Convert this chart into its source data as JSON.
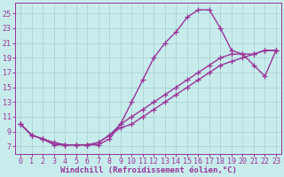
{
  "background_color": "#c8ecec",
  "grid_color": "#aad4d4",
  "line_color": "#993399",
  "marker": "+",
  "marker_size": 4,
  "linewidth": 1.0,
  "xlabel": "Windchill (Refroidissement éolien,°C)",
  "xlabel_fontsize": 6.5,
  "xlim": [
    -0.5,
    23.5
  ],
  "ylim": [
    6.0,
    26.5
  ],
  "xticks": [
    0,
    1,
    2,
    3,
    4,
    5,
    6,
    7,
    8,
    9,
    10,
    11,
    12,
    13,
    14,
    15,
    16,
    17,
    18,
    19,
    20,
    21,
    22,
    23
  ],
  "yticks": [
    7,
    9,
    11,
    13,
    15,
    17,
    19,
    21,
    23,
    25
  ],
  "tick_fontsize": 6,
  "curves": [
    {
      "x": [
        0,
        1,
        2,
        3,
        4,
        5,
        6,
        7,
        8,
        9,
        10,
        11,
        12,
        13,
        14,
        15,
        16,
        17,
        18,
        19,
        20,
        21,
        22,
        23
      ],
      "y": [
        10,
        8.5,
        8.0,
        7.2,
        7.2,
        7.2,
        7.2,
        7.2,
        8.0,
        10.0,
        13.0,
        16.0,
        19.0,
        21.0,
        22.5,
        24.5,
        25.5,
        25.5,
        23.0,
        20.0,
        19.5,
        19.5,
        20.0,
        20.0
      ]
    },
    {
      "x": [
        0,
        1,
        2,
        3,
        4,
        5,
        6,
        7,
        8,
        9,
        10,
        11,
        12,
        13,
        14,
        15,
        16,
        17,
        18,
        19,
        20,
        21,
        22,
        23
      ],
      "y": [
        10,
        8.5,
        8.0,
        7.5,
        7.2,
        7.2,
        7.2,
        7.5,
        8.5,
        10.0,
        11.0,
        12.0,
        13.0,
        14.0,
        15.0,
        16.0,
        17.0,
        18.0,
        19.0,
        19.5,
        19.5,
        18.0,
        16.5,
        20.0
      ]
    },
    {
      "x": [
        0,
        1,
        2,
        3,
        4,
        5,
        6,
        7,
        8,
        9,
        10,
        11,
        12,
        13,
        14,
        15,
        16,
        17,
        18,
        19,
        20,
        21,
        22,
        23
      ],
      "y": [
        10,
        8.5,
        8.0,
        7.5,
        7.2,
        7.2,
        7.2,
        7.5,
        8.5,
        9.5,
        10.0,
        11.0,
        12.0,
        13.0,
        14.0,
        15.0,
        16.0,
        17.0,
        18.0,
        18.5,
        19.0,
        19.5,
        20.0,
        20.0
      ]
    }
  ]
}
